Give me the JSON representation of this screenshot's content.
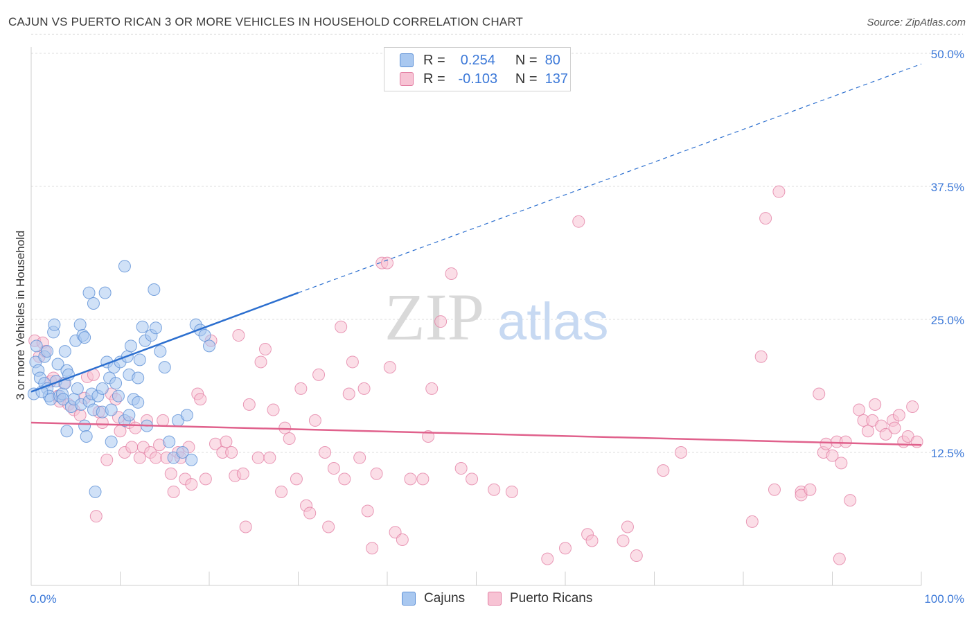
{
  "header": {
    "title": "CAJUN VS PUERTO RICAN 3 OR MORE VEHICLES IN HOUSEHOLD CORRELATION CHART",
    "source": "Source: ZipAtlas.com"
  },
  "watermark": {
    "zip": "ZIP",
    "atlas": "atlas"
  },
  "legend_top": [
    {
      "r_label": "R =",
      "r_value": "0.254",
      "n_label": "N =",
      "n_value": "80",
      "color": "#a9c8f0",
      "border": "#5b8fd6"
    },
    {
      "r_label": "R =",
      "r_value": "-0.103",
      "n_label": "N =",
      "n_value": "137",
      "color": "#f7c3d4",
      "border": "#e27aa0"
    }
  ],
  "legend_bottom": [
    {
      "label": "Cajuns",
      "color": "#a9c8f0",
      "border": "#5b8fd6"
    },
    {
      "label": "Puerto Ricans",
      "color": "#f7c3d4",
      "border": "#e27aa0"
    }
  ],
  "colors": {
    "cajun_fill": "#a9c8f0",
    "cajun_stroke": "#5b8fd6",
    "cajun_line": "#2c6fcf",
    "pr_fill": "#f7c3d4",
    "pr_stroke": "#e27aa0",
    "pr_line": "#e0618c",
    "tick_text": "#3b78d8"
  },
  "chart_data": {
    "type": "scatter",
    "title": "CAJUN VS PUERTO RICAN 3 OR MORE VEHICLES IN HOUSEHOLD CORRELATION CHART",
    "xlabel": "",
    "ylabel": "3 or more Vehicles in Household",
    "xlim": [
      0,
      100
    ],
    "ylim": [
      0,
      52.5
    ],
    "x_tick_labels": [
      "0.0%",
      "100.0%"
    ],
    "y_ticks": [
      12.5,
      25.0,
      37.5,
      50.0
    ],
    "y_tick_labels": [
      "12.5%",
      "25.0%",
      "37.5%",
      "50.0%"
    ],
    "grid": true,
    "legend_position": "top-center",
    "series": [
      {
        "name": "Cajuns",
        "points": [
          [
            0.3,
            18.0
          ],
          [
            0.5,
            21.0
          ],
          [
            0.8,
            20.2
          ],
          [
            0.6,
            22.5
          ],
          [
            1.0,
            19.5
          ],
          [
            1.5,
            19.0
          ],
          [
            1.8,
            18.5
          ],
          [
            2.0,
            17.8
          ],
          [
            2.2,
            17.5
          ],
          [
            1.2,
            18.2
          ],
          [
            1.5,
            21.5
          ],
          [
            1.8,
            22.0
          ],
          [
            2.5,
            23.8
          ],
          [
            2.6,
            24.5
          ],
          [
            2.8,
            19.2
          ],
          [
            3.0,
            20.8
          ],
          [
            3.2,
            17.8
          ],
          [
            3.5,
            18.0
          ],
          [
            3.6,
            17.5
          ],
          [
            3.8,
            19.0
          ],
          [
            4.0,
            20.2
          ],
          [
            3.8,
            22.0
          ],
          [
            4.2,
            19.8
          ],
          [
            4.5,
            16.8
          ],
          [
            4.8,
            17.5
          ],
          [
            4.0,
            14.5
          ],
          [
            5.0,
            23.0
          ],
          [
            5.2,
            18.5
          ],
          [
            5.5,
            24.5
          ],
          [
            5.8,
            23.5
          ],
          [
            5.6,
            17.0
          ],
          [
            6.0,
            23.3
          ],
          [
            6.0,
            15.0
          ],
          [
            6.2,
            14.0
          ],
          [
            6.5,
            17.3
          ],
          [
            7.0,
            16.5
          ],
          [
            6.8,
            18.0
          ],
          [
            6.5,
            27.5
          ],
          [
            7.0,
            26.5
          ],
          [
            7.5,
            17.8
          ],
          [
            7.2,
            8.8
          ],
          [
            8.0,
            16.3
          ],
          [
            8.5,
            21.0
          ],
          [
            8.3,
            27.5
          ],
          [
            8.0,
            18.5
          ],
          [
            8.8,
            19.5
          ],
          [
            9.0,
            13.5
          ],
          [
            9.3,
            20.5
          ],
          [
            9.0,
            16.5
          ],
          [
            9.5,
            19.0
          ],
          [
            9.8,
            17.8
          ],
          [
            10.0,
            21.0
          ],
          [
            10.5,
            15.5
          ],
          [
            10.5,
            30.0
          ],
          [
            10.8,
            21.5
          ],
          [
            11.0,
            19.8
          ],
          [
            11.0,
            16.0
          ],
          [
            11.5,
            17.5
          ],
          [
            11.2,
            22.5
          ],
          [
            12.0,
            19.5
          ],
          [
            12.0,
            17.2
          ],
          [
            12.2,
            21.2
          ],
          [
            12.5,
            24.3
          ],
          [
            12.8,
            23.0
          ],
          [
            13.0,
            15.0
          ],
          [
            13.5,
            23.5
          ],
          [
            13.8,
            27.8
          ],
          [
            14.0,
            24.2
          ],
          [
            14.5,
            22.0
          ],
          [
            15.0,
            20.5
          ],
          [
            15.5,
            13.5
          ],
          [
            16.0,
            12.0
          ],
          [
            16.5,
            15.5
          ],
          [
            17.0,
            12.5
          ],
          [
            17.5,
            16.0
          ],
          [
            18.0,
            11.8
          ],
          [
            18.5,
            24.5
          ],
          [
            19.0,
            24.0
          ],
          [
            19.5,
            23.5
          ],
          [
            20.0,
            22.5
          ]
        ]
      },
      {
        "name": "Puerto Ricans",
        "points": [
          [
            0.4,
            23.0
          ],
          [
            0.9,
            21.5
          ],
          [
            1.3,
            22.8
          ],
          [
            1.6,
            22.0
          ],
          [
            2.2,
            19.2
          ],
          [
            2.5,
            19.5
          ],
          [
            3.0,
            17.8
          ],
          [
            3.2,
            17.3
          ],
          [
            3.7,
            19.0
          ],
          [
            4.2,
            17.0
          ],
          [
            4.8,
            16.5
          ],
          [
            5.5,
            16.0
          ],
          [
            6.0,
            17.6
          ],
          [
            6.3,
            19.6
          ],
          [
            7.0,
            19.8
          ],
          [
            7.3,
            6.5
          ],
          [
            7.6,
            16.3
          ],
          [
            8.0,
            15.3
          ],
          [
            8.5,
            11.8
          ],
          [
            9.0,
            18.0
          ],
          [
            9.5,
            17.5
          ],
          [
            9.8,
            15.8
          ],
          [
            10.0,
            14.5
          ],
          [
            10.5,
            12.5
          ],
          [
            11.0,
            15.3
          ],
          [
            11.3,
            13.0
          ],
          [
            11.7,
            14.8
          ],
          [
            12.2,
            12.0
          ],
          [
            12.6,
            13.0
          ],
          [
            13.0,
            15.5
          ],
          [
            13.4,
            12.5
          ],
          [
            14.0,
            12.0
          ],
          [
            14.4,
            13.2
          ],
          [
            14.8,
            15.5
          ],
          [
            15.2,
            12.0
          ],
          [
            15.7,
            10.5
          ],
          [
            16.0,
            8.8
          ],
          [
            16.5,
            12.5
          ],
          [
            16.8,
            12.0
          ],
          [
            17.3,
            10.0
          ],
          [
            17.7,
            13.0
          ],
          [
            18.0,
            9.5
          ],
          [
            18.7,
            18.0
          ],
          [
            19.0,
            17.5
          ],
          [
            19.6,
            10.0
          ],
          [
            20.2,
            23.0
          ],
          [
            20.7,
            13.3
          ],
          [
            21.5,
            12.5
          ],
          [
            21.9,
            13.5
          ],
          [
            22.5,
            12.5
          ],
          [
            22.9,
            10.3
          ],
          [
            23.3,
            23.5
          ],
          [
            23.8,
            10.5
          ],
          [
            24.1,
            5.5
          ],
          [
            24.5,
            17.0
          ],
          [
            25.5,
            12.0
          ],
          [
            25.8,
            21.0
          ],
          [
            26.3,
            22.2
          ],
          [
            26.8,
            12.0
          ],
          [
            27.2,
            16.5
          ],
          [
            28.1,
            8.8
          ],
          [
            28.5,
            14.8
          ],
          [
            29.0,
            13.8
          ],
          [
            29.8,
            10.0
          ],
          [
            30.3,
            18.5
          ],
          [
            30.9,
            7.5
          ],
          [
            31.3,
            6.8
          ],
          [
            31.9,
            15.5
          ],
          [
            32.3,
            19.8
          ],
          [
            33.0,
            12.5
          ],
          [
            33.4,
            5.5
          ],
          [
            34.0,
            11.0
          ],
          [
            34.8,
            24.3
          ],
          [
            35.2,
            10.0
          ],
          [
            35.7,
            18.0
          ],
          [
            36.1,
            21.0
          ],
          [
            36.9,
            12.0
          ],
          [
            37.4,
            18.5
          ],
          [
            37.8,
            7.0
          ],
          [
            38.3,
            3.5
          ],
          [
            38.8,
            10.5
          ],
          [
            39.4,
            30.3
          ],
          [
            40.0,
            30.3
          ],
          [
            40.3,
            20.5
          ],
          [
            40.9,
            5.0
          ],
          [
            41.7,
            4.3
          ],
          [
            42.6,
            10.0
          ],
          [
            44.0,
            10.0
          ],
          [
            44.6,
            14.0
          ],
          [
            45.0,
            18.5
          ],
          [
            46.0,
            24.8
          ],
          [
            47.2,
            29.3
          ],
          [
            48.3,
            11.0
          ],
          [
            49.5,
            10.0
          ],
          [
            52.0,
            9.0
          ],
          [
            54.0,
            8.8
          ],
          [
            58.0,
            2.5
          ],
          [
            60.0,
            3.5
          ],
          [
            61.5,
            34.2
          ],
          [
            62.5,
            4.8
          ],
          [
            63.0,
            4.2
          ],
          [
            66.5,
            4.2
          ],
          [
            67.0,
            5.5
          ],
          [
            68.0,
            2.8
          ],
          [
            71.0,
            10.8
          ],
          [
            73.0,
            12.5
          ],
          [
            81.0,
            6.0
          ],
          [
            82.0,
            21.5
          ],
          [
            82.5,
            34.5
          ],
          [
            83.5,
            9.0
          ],
          [
            84.0,
            37.0
          ],
          [
            86.5,
            8.8
          ],
          [
            86.5,
            8.5
          ],
          [
            87.5,
            9.0
          ],
          [
            88.5,
            18.0
          ],
          [
            89.0,
            12.5
          ],
          [
            89.3,
            13.3
          ],
          [
            90.0,
            12.2
          ],
          [
            90.5,
            13.5
          ],
          [
            91.0,
            11.5
          ],
          [
            90.8,
            2.5
          ],
          [
            91.5,
            13.5
          ],
          [
            92.0,
            8.0
          ],
          [
            93.0,
            16.5
          ],
          [
            93.5,
            15.5
          ],
          [
            94.0,
            14.5
          ],
          [
            94.5,
            15.5
          ],
          [
            94.8,
            17.0
          ],
          [
            95.5,
            15.0
          ],
          [
            96.0,
            14.2
          ],
          [
            96.8,
            15.5
          ],
          [
            97.0,
            14.8
          ],
          [
            97.5,
            16.0
          ],
          [
            98.0,
            13.5
          ],
          [
            98.5,
            14.0
          ],
          [
            99.0,
            16.8
          ],
          [
            99.5,
            13.5
          ]
        ]
      }
    ],
    "trend_lines": [
      {
        "series": "Cajuns",
        "solid_from": [
          0,
          18.2
        ],
        "solid_to": [
          30,
          27.5
        ],
        "dashed_to": [
          100,
          49.0
        ]
      },
      {
        "series": "Puerto Ricans",
        "from": [
          0,
          15.3
        ],
        "to": [
          100,
          13.2
        ]
      }
    ]
  }
}
